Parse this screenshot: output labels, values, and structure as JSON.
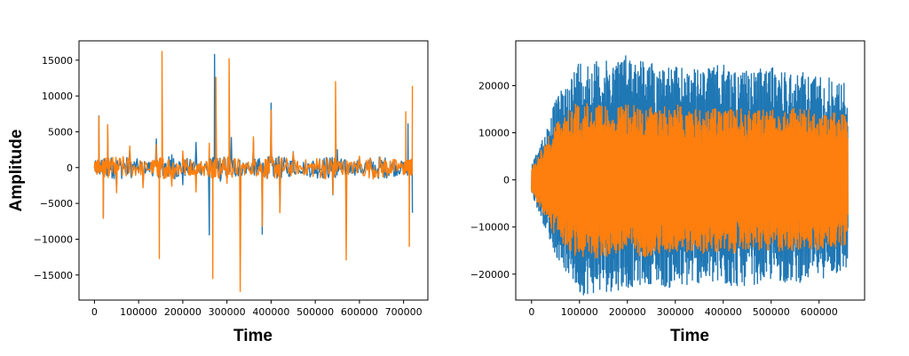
{
  "chart_data": [
    {
      "type": "line",
      "title": "",
      "xlabel": "Time",
      "ylabel": "Amplitude",
      "xlim": [
        -35000,
        755000
      ],
      "ylim": [
        -18500,
        17700
      ],
      "xticks": [
        0,
        100000,
        200000,
        300000,
        400000,
        500000,
        600000,
        700000
      ],
      "xtick_labels": [
        "0",
        "100000",
        "200000",
        "300000",
        "400000",
        "500000",
        "600000",
        "700000"
      ],
      "yticks": [
        -15000,
        -10000,
        -5000,
        0,
        5000,
        10000,
        15000
      ],
      "ytick_labels": [
        "−15000",
        "−10000",
        "−5000",
        "0",
        "5000",
        "10000",
        "15000"
      ],
      "grid": false,
      "series": [
        {
          "color": "#1f77b4",
          "x": [
            0,
            10000,
            20000,
            30000,
            50000,
            80000,
            110000,
            140000,
            158000,
            175000,
            200000,
            230000,
            260000,
            272000,
            285000,
            310000,
            330000,
            360000,
            380000,
            400000,
            420000,
            450000,
            480000,
            510000,
            540000,
            550000,
            570000,
            600000,
            640000,
            670000,
            700000,
            710000,
            720000
          ],
          "values": [
            0,
            7200,
            -6900,
            5500,
            -3000,
            2500,
            -2200,
            4000,
            -1500,
            1800,
            -2400,
            3500,
            -9400,
            15800,
            -1900,
            4200,
            -1500,
            3600,
            -9300,
            9000,
            -6000,
            2200,
            -900,
            1200,
            -3800,
            2500,
            -1400,
            900,
            -600,
            800,
            -900,
            6100,
            -6300
          ]
        },
        {
          "color": "#ff7f0e",
          "x": [
            0,
            10000,
            20000,
            30000,
            50000,
            80000,
            110000,
            140000,
            147000,
            153000,
            175000,
            200000,
            230000,
            260000,
            268000,
            275000,
            300000,
            305000,
            330000,
            360000,
            380000,
            400000,
            420000,
            450000,
            480000,
            510000,
            540000,
            546000,
            570000,
            600000,
            640000,
            670000,
            700000,
            705000,
            713000,
            720000
          ],
          "values": [
            0,
            7100,
            -7100,
            6000,
            -3500,
            3000,
            -2800,
            3200,
            -12700,
            16200,
            -2600,
            2300,
            -3400,
            3400,
            -15500,
            12600,
            -2200,
            15200,
            -17300,
            4300,
            -8200,
            8000,
            -6300,
            2100,
            -900,
            1100,
            -3700,
            12000,
            -12900,
            1600,
            -600,
            900,
            -1000,
            7800,
            -11000,
            11400
          ]
        }
      ]
    },
    {
      "type": "line",
      "title": "",
      "xlabel": "Time",
      "ylabel": "",
      "xlim": [
        -33000,
        695000
      ],
      "ylim": [
        -25500,
        29500
      ],
      "xticks": [
        0,
        100000,
        200000,
        300000,
        400000,
        500000,
        600000
      ],
      "xtick_labels": [
        "0",
        "100000",
        "200000",
        "300000",
        "400000",
        "500000",
        "600000"
      ],
      "yticks": [
        -20000,
        -10000,
        0,
        10000,
        20000
      ],
      "ytick_labels": [
        "−20000",
        "−10000",
        "0",
        "10000",
        "20000"
      ],
      "grid": false,
      "series": [
        {
          "color": "#1f77b4",
          "envelope_x": [
            0,
            20000,
            50000,
            80000,
            100000,
            150000,
            200000,
            250000,
            300000,
            350000,
            400000,
            450000,
            500000,
            550000,
            600000,
            650000,
            660000
          ],
          "upper": [
            3000,
            8000,
            17000,
            22000,
            26000,
            25000,
            27000,
            25000,
            24000,
            23500,
            24500,
            23000,
            24000,
            23000,
            22500,
            21000,
            20000
          ],
          "lower": [
            -3000,
            -8000,
            -16000,
            -21000,
            -24500,
            -24000,
            -23000,
            -22000,
            -23500,
            -22000,
            -23000,
            -22500,
            -21500,
            -22000,
            -21000,
            -20000,
            -19000
          ]
        },
        {
          "color": "#ff7f0e",
          "envelope_x": [
            0,
            20000,
            50000,
            80000,
            100000,
            150000,
            200000,
            250000,
            300000,
            350000,
            400000,
            450000,
            500000,
            550000,
            600000,
            650000,
            660000
          ],
          "upper": [
            2500,
            6500,
            12000,
            15000,
            17000,
            15500,
            16000,
            15500,
            16000,
            15000,
            15500,
            15000,
            15000,
            15500,
            14500,
            14000,
            13500
          ],
          "lower": [
            -2500,
            -6500,
            -12000,
            -15000,
            -17000,
            -16500,
            -16000,
            -16500,
            -15500,
            -15500,
            -16000,
            -15000,
            -15500,
            -15000,
            -15000,
            -14000,
            -13500
          ]
        }
      ]
    }
  ]
}
